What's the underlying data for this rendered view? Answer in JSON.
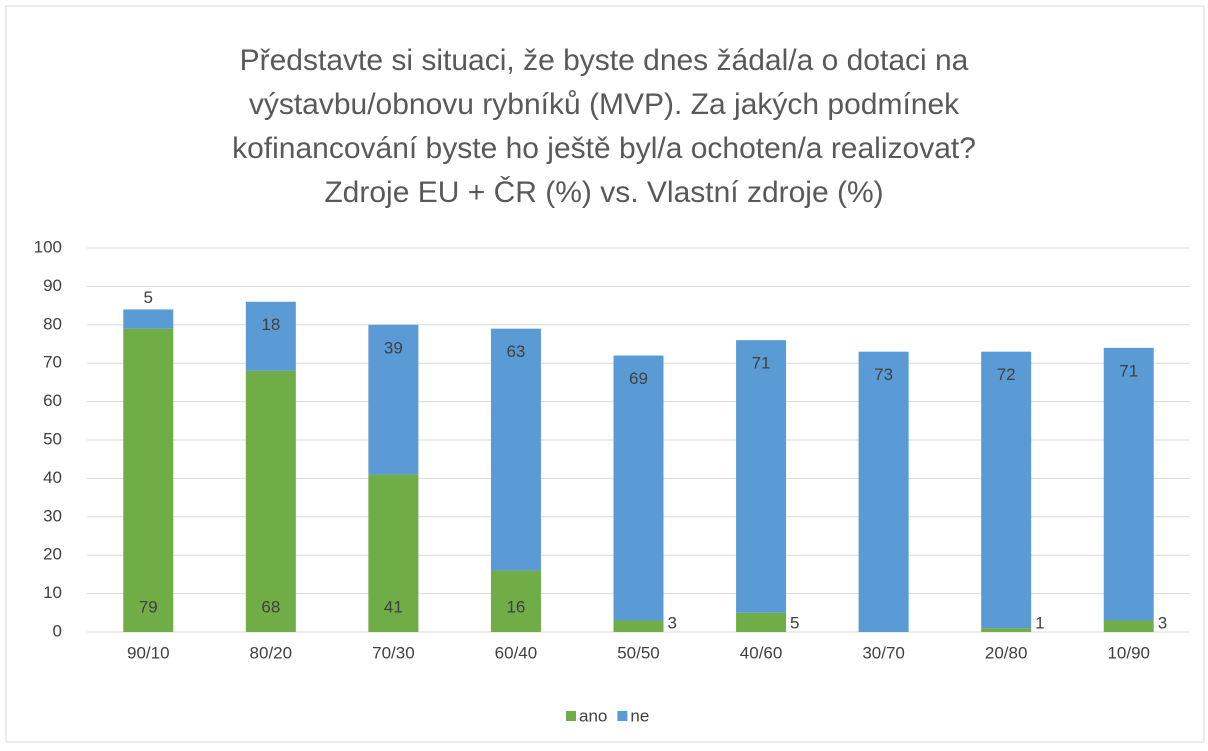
{
  "chart_data": {
    "type": "stacked_bar",
    "title": [
      "Představte si situaci, že byste dnes žádal/a o dotaci na",
      "výstavbu/obnovu rybníků (MVP). Za jakých podmínek",
      "kofinancování byste ho ještě byl/a ochoten/a realizovat?",
      "Zdroje EU + ČR (%) vs. Vlastní zdroje (%)"
    ],
    "categories": [
      "90/10",
      "80/20",
      "70/30",
      "60/40",
      "50/50",
      "40/60",
      "30/70",
      "20/80",
      "10/90"
    ],
    "series": [
      {
        "name": "ano",
        "color": "#70ad47",
        "values": [
          79,
          68,
          41,
          16,
          3,
          5,
          0,
          1,
          3
        ]
      },
      {
        "name": "ne",
        "color": "#5b9bd5",
        "values": [
          5,
          18,
          39,
          63,
          69,
          71,
          73,
          72,
          71
        ]
      }
    ],
    "ylim": [
      0,
      100
    ],
    "yticks": [
      0,
      10,
      20,
      30,
      40,
      50,
      60,
      70,
      80,
      90,
      100
    ],
    "grid": true,
    "legend": "bottom"
  }
}
